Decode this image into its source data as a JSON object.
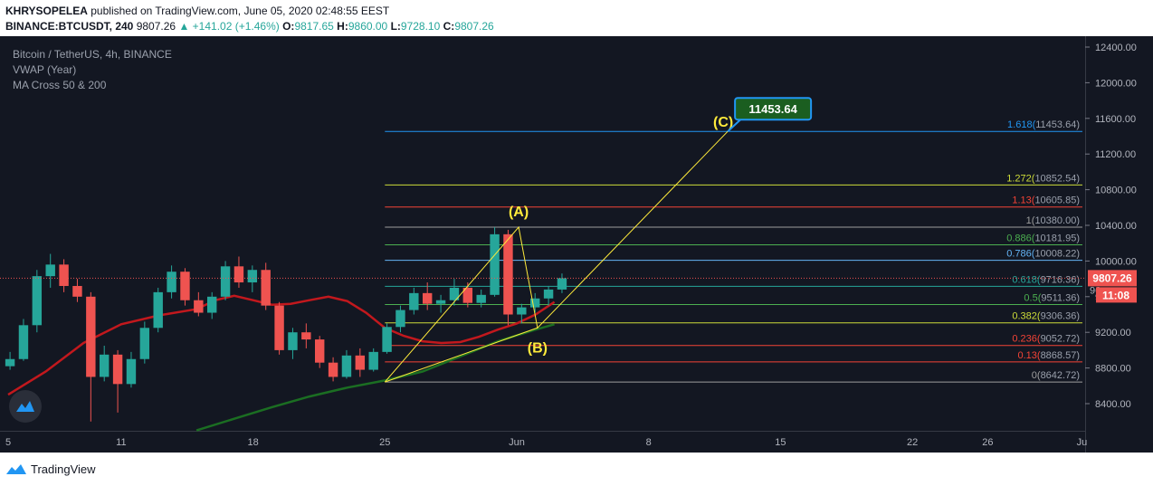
{
  "header": {
    "author": "KHRYSOPELEA",
    "published": "published on TradingView.com, June 05, 2020 02:48:55 EEST",
    "symbol": "BINANCE:BTCUSDT, 240",
    "last": "9807.26",
    "change_icon": "up-triangle-icon",
    "change": "+141.02 (+1.46%)",
    "open_label": "O:",
    "open": "9817.65",
    "high_label": "H:",
    "high": "9860.00",
    "low_label": "L:",
    "low": "9728.10",
    "close_label": "C:",
    "close": "9807.26"
  },
  "legend": {
    "symbol_name": "Bitcoin / TetherUS, 4h, BINANCE",
    "indicator1": "VWAP (Year)",
    "indicator2": "MA Cross 50 & 200"
  },
  "footer": {
    "brand": "TradingView",
    "logo_icon": "tradingview-logo-icon"
  },
  "colors": {
    "background": "#131722",
    "up": "#26a69a",
    "down": "#ef5350",
    "ma_fast": "#c2181d",
    "ma_slow": "#1b6e22",
    "pattern": "#ffeb3b"
  },
  "chart_data": {
    "type": "candlestick",
    "y_axis": {
      "range": [
        8200,
        12500
      ],
      "ticks": [
        "12400.00",
        "12000.00",
        "11600.00",
        "11200.00",
        "10800.00",
        "10400.00",
        "10000.00",
        "9600.00",
        "9200.00",
        "8800.00",
        "8400.00"
      ]
    },
    "x_axis": {
      "ticks": [
        {
          "label": "5",
          "day": 5
        },
        {
          "label": "11",
          "day": 11
        },
        {
          "label": "18",
          "day": 18
        },
        {
          "label": "25",
          "day": 25
        },
        {
          "label": "Jun",
          "day": 32
        },
        {
          "label": "8",
          "day": 39
        },
        {
          "label": "15",
          "day": 46
        },
        {
          "label": "22",
          "day": 53
        },
        {
          "label": "26",
          "day": 57
        },
        {
          "label": "Ju",
          "day": 62
        }
      ]
    },
    "price_line": {
      "value": 9807.26,
      "label": "9807.26",
      "countdown": "11:08",
      "hidden_label": "96"
    },
    "fib_levels": [
      {
        "ratio": "1.618",
        "value": "11453.64",
        "color": "#2196f3"
      },
      {
        "ratio": "1.272",
        "value": "10852.54",
        "color": "#cddc39"
      },
      {
        "ratio": "1.13",
        "value": "10605.85",
        "color": "#f44336"
      },
      {
        "ratio": "1",
        "value": "10380.00",
        "color": "#9e9e9e"
      },
      {
        "ratio": "0.886",
        "value": "10181.95",
        "color": "#4caf50"
      },
      {
        "ratio": "0.786",
        "value": "10008.22",
        "color": "#64b5f6"
      },
      {
        "ratio": "0.618",
        "value": "9716.36",
        "color": "#26a69a"
      },
      {
        "ratio": "0.5",
        "value": "9511.36",
        "color": "#4caf50"
      },
      {
        "ratio": "0.382",
        "value": "9306.36",
        "color": "#cddc39"
      },
      {
        "ratio": "0.236",
        "value": "9052.72",
        "color": "#f44336"
      },
      {
        "ratio": "0.13",
        "value": "8868.57",
        "color": "#f44336"
      },
      {
        "ratio": "0",
        "value": "8642.72",
        "color": "#9e9e9e"
      }
    ],
    "abc_pattern": {
      "points": [
        {
          "label": "",
          "day": 25,
          "value": 8642.72
        },
        {
          "label": "(A)",
          "day": 32.1,
          "value": 10380
        },
        {
          "label": "(B)",
          "day": 33.1,
          "value": 9250
        },
        {
          "label": "(C)",
          "day": 43.2,
          "value": 11453.64
        }
      ],
      "target_label": "11453.64"
    },
    "ma_fast": [
      [
        5,
        8500
      ],
      [
        7,
        8760
      ],
      [
        9,
        9080
      ],
      [
        11,
        9290
      ],
      [
        13,
        9390
      ],
      [
        15,
        9460
      ],
      [
        16,
        9560
      ],
      [
        17,
        9610
      ],
      [
        18,
        9560
      ],
      [
        19,
        9510
      ],
      [
        20,
        9520
      ],
      [
        21,
        9560
      ],
      [
        22,
        9600
      ],
      [
        23,
        9550
      ],
      [
        24,
        9420
      ],
      [
        25,
        9250
      ],
      [
        26,
        9160
      ],
      [
        27,
        9100
      ],
      [
        28,
        9080
      ],
      [
        29,
        9090
      ],
      [
        30,
        9150
      ],
      [
        31,
        9230
      ],
      [
        32,
        9300
      ],
      [
        33,
        9400
      ],
      [
        34,
        9540
      ]
    ],
    "ma_slow": [
      [
        15,
        8100
      ],
      [
        17,
        8230
      ],
      [
        19,
        8360
      ],
      [
        21,
        8480
      ],
      [
        23,
        8580
      ],
      [
        25,
        8660
      ],
      [
        27,
        8760
      ],
      [
        29,
        8930
      ],
      [
        31,
        9100
      ],
      [
        33,
        9230
      ],
      [
        34,
        9290
      ]
    ],
    "candles_ohlc": [
      [
        8820,
        8980,
        8780,
        8900
      ],
      [
        8900,
        9350,
        8880,
        9280
      ],
      [
        9280,
        9900,
        9200,
        9830
      ],
      [
        9830,
        10080,
        9700,
        9960
      ],
      [
        9960,
        10020,
        9650,
        9720
      ],
      [
        9720,
        9800,
        9540,
        9600
      ],
      [
        9600,
        9650,
        8200,
        8700
      ],
      [
        8700,
        9050,
        8650,
        8950
      ],
      [
        8950,
        9000,
        8300,
        8620
      ],
      [
        8620,
        8980,
        8580,
        8900
      ],
      [
        8900,
        9320,
        8850,
        9250
      ],
      [
        9250,
        9700,
        9200,
        9650
      ],
      [
        9650,
        9950,
        9580,
        9880
      ],
      [
        9880,
        9920,
        9500,
        9560
      ],
      [
        9560,
        9650,
        9380,
        9420
      ],
      [
        9420,
        9650,
        9350,
        9600
      ],
      [
        9600,
        10000,
        9560,
        9940
      ],
      [
        9940,
        10050,
        9700,
        9760
      ],
      [
        9760,
        9950,
        9650,
        9900
      ],
      [
        9900,
        9980,
        9450,
        9500
      ],
      [
        9500,
        9540,
        8950,
        9000
      ],
      [
        9000,
        9250,
        8900,
        9200
      ],
      [
        9200,
        9300,
        9020,
        9120
      ],
      [
        9120,
        9160,
        8800,
        8860
      ],
      [
        8860,
        8920,
        8650,
        8700
      ],
      [
        8700,
        9000,
        8680,
        8940
      ],
      [
        8940,
        9020,
        8700,
        8780
      ],
      [
        8780,
        9020,
        8760,
        8980
      ],
      [
        8980,
        9300,
        8960,
        9260
      ],
      [
        9260,
        9500,
        9200,
        9450
      ],
      [
        9450,
        9700,
        9400,
        9640
      ],
      [
        9640,
        9760,
        9450,
        9520
      ],
      [
        9520,
        9620,
        9420,
        9560
      ],
      [
        9560,
        9800,
        9500,
        9700
      ],
      [
        9700,
        9760,
        9480,
        9530
      ],
      [
        9530,
        9680,
        9480,
        9620
      ],
      [
        9620,
        10380,
        9600,
        10300
      ],
      [
        10300,
        10350,
        9280,
        9400
      ],
      [
        9400,
        9520,
        9300,
        9480
      ],
      [
        9480,
        9640,
        9420,
        9580
      ],
      [
        9580,
        9720,
        9500,
        9680
      ],
      [
        9680,
        9860,
        9640,
        9807
      ]
    ]
  }
}
